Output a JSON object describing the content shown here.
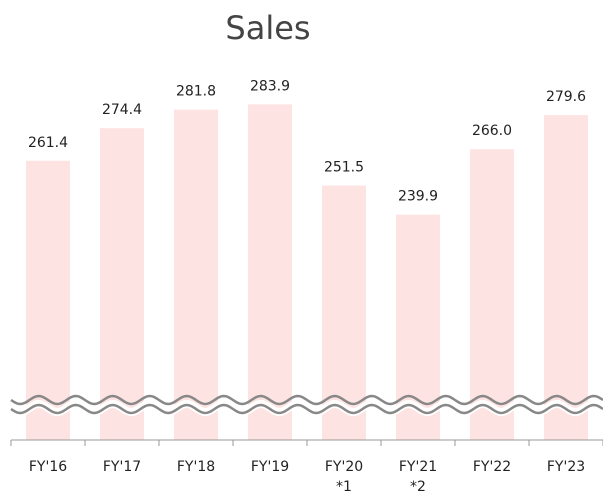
{
  "chart_data": {
    "type": "bar",
    "title": "Sales",
    "categories": [
      "FY'16",
      "FY'17",
      "FY'18",
      "FY'19",
      "FY'20",
      "FY'21",
      "FY'22",
      "FY'23"
    ],
    "category_notes": [
      null,
      null,
      null,
      null,
      "*1",
      "*2",
      null,
      null
    ],
    "values": [
      261.4,
      274.4,
      281.8,
      283.9,
      251.5,
      239.9,
      266.0,
      279.6
    ],
    "value_labels": [
      "261.4",
      "274.4",
      "281.8",
      "283.9",
      "251.5",
      "239.9",
      "266.0",
      "279.6"
    ],
    "color": "#fde3e1",
    "ylim": [
      150,
      300
    ]
  }
}
